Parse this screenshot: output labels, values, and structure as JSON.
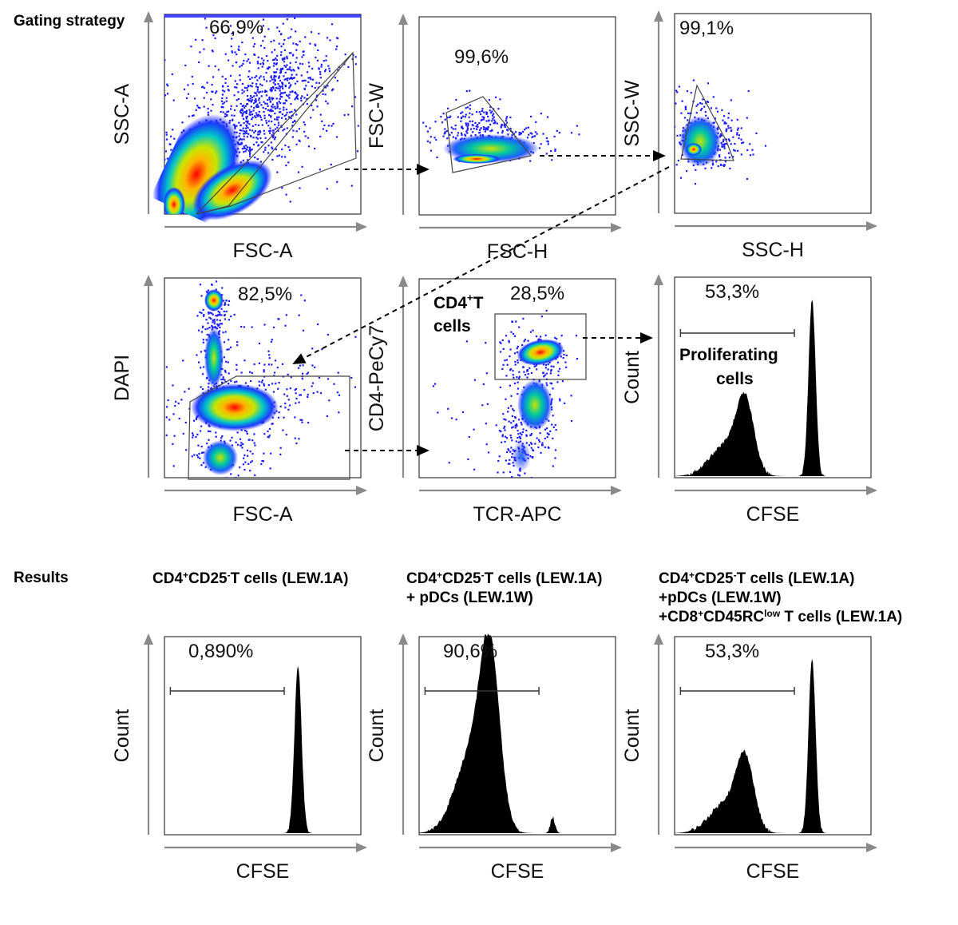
{
  "sections": {
    "gating_title": "Gating strategy",
    "results_title": "Results"
  },
  "colors": {
    "density_low": "#1a1aff",
    "density_mid": "#00c8c8",
    "density_midhigh": "#c8e600",
    "density_high": "#ff0000",
    "axis": "#8a8a8a",
    "histogram_fill": "#000000"
  },
  "chart_data": [
    {
      "id": "p1",
      "type": "scatter",
      "xlabel": "FSC-A",
      "ylabel": "SSC-A",
      "gate_percent": "66,9%"
    },
    {
      "id": "p2",
      "type": "scatter",
      "xlabel": "FSC-H",
      "ylabel": "FSC-W",
      "gate_percent": "99,6%"
    },
    {
      "id": "p3",
      "type": "scatter",
      "xlabel": "SSC-H",
      "ylabel": "SSC-W",
      "gate_percent": "99,1%"
    },
    {
      "id": "p4",
      "type": "scatter",
      "xlabel": "FSC-A",
      "ylabel": "DAPI",
      "gate_percent": "82,5%"
    },
    {
      "id": "p5",
      "type": "scatter",
      "xlabel": "TCR-APC",
      "ylabel": "CD4-PeCy7",
      "gate_percent": "28,5%",
      "gate_label_main": "CD4",
      "gate_label_sup": "+",
      "gate_label_tail": "T",
      "gate_label_line2": "cells"
    },
    {
      "id": "p6",
      "type": "area",
      "xlabel": "CFSE",
      "ylabel": "Count",
      "gate_percent": "53,3%",
      "gate_label_line1": "Proliferating",
      "gate_label_line2": "cells",
      "peaks": [
        {
          "x": 0.36,
          "height": 0.34
        },
        {
          "x": 0.7,
          "height": 0.88
        }
      ]
    },
    {
      "id": "r1",
      "type": "area",
      "xlabel": "CFSE",
      "ylabel": "Count",
      "gate_percent": "0,890%",
      "peaks": [
        {
          "x": 0.68,
          "height": 0.85
        }
      ]
    },
    {
      "id": "r2",
      "type": "area",
      "xlabel": "CFSE",
      "ylabel": "Count",
      "gate_percent": "90,6%",
      "peaks": [
        {
          "x": 0.36,
          "height": 0.85
        },
        {
          "x": 0.68,
          "height": 0.08
        }
      ]
    },
    {
      "id": "r3",
      "type": "area",
      "xlabel": "CFSE",
      "ylabel": "Count",
      "gate_percent": "53,3%",
      "peaks": [
        {
          "x": 0.36,
          "height": 0.34
        },
        {
          "x": 0.7,
          "height": 0.88
        }
      ]
    }
  ],
  "results_captions": [
    {
      "lines": [
        [
          [
            "CD4",
            ""
          ],
          [
            "+",
            "sup"
          ],
          [
            "CD25",
            ""
          ],
          [
            "-",
            "sup"
          ],
          [
            "T cells (LEW.1A)",
            ""
          ]
        ]
      ]
    },
    {
      "lines": [
        [
          [
            "CD4",
            ""
          ],
          [
            "+",
            "sup"
          ],
          [
            "CD25",
            ""
          ],
          [
            "-",
            "sup"
          ],
          [
            "T cells (LEW.1A)",
            ""
          ]
        ],
        [
          [
            "+ pDCs (LEW.1W)",
            ""
          ]
        ]
      ]
    },
    {
      "lines": [
        [
          [
            "CD4",
            ""
          ],
          [
            "+",
            "sup"
          ],
          [
            "CD25",
            ""
          ],
          [
            "-",
            "sup"
          ],
          [
            "T cells (LEW.1A)",
            ""
          ]
        ],
        [
          [
            "+pDCs (LEW.1W)",
            ""
          ]
        ],
        [
          [
            "+CD8",
            ""
          ],
          [
            "+",
            "sup"
          ],
          [
            "CD45RC",
            ""
          ],
          [
            "low",
            "sup"
          ],
          [
            " T cells (LEW.1A)",
            ""
          ]
        ]
      ]
    }
  ]
}
